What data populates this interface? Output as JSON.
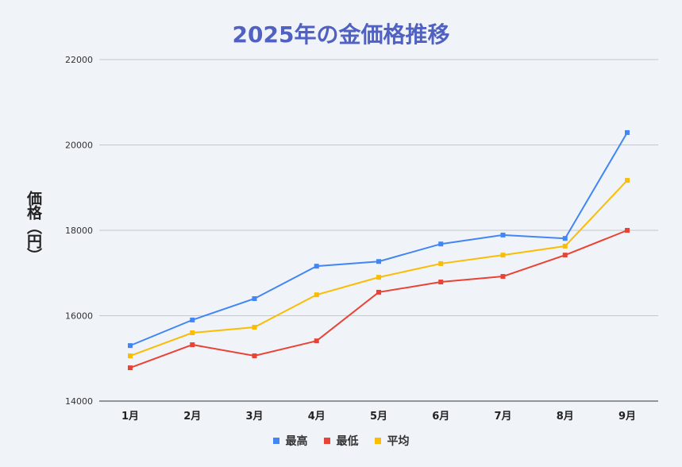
{
  "chart_data": {
    "type": "line",
    "title": "2025年の金価格推移",
    "xlabel": "",
    "ylabel": "価格（円）",
    "categories": [
      "1月",
      "2月",
      "3月",
      "4月",
      "5月",
      "6月",
      "7月",
      "8月",
      "9月"
    ],
    "ylim": [
      14000,
      22000
    ],
    "yticks": [
      "14000",
      "16000",
      "18000",
      "20000",
      "22000"
    ],
    "grid": true,
    "legend_position": "bottom",
    "series": [
      {
        "name": "最高",
        "color": "#4285f4",
        "values": [
          15300,
          15900,
          16400,
          17160,
          17270,
          17680,
          17890,
          17810,
          20290
        ]
      },
      {
        "name": "最低",
        "color": "#ea4335",
        "values": [
          14780,
          15320,
          15060,
          15410,
          16550,
          16790,
          16920,
          17420,
          18000
        ]
      },
      {
        "name": "平均",
        "color": "#fbbc04",
        "values": [
          15060,
          15600,
          15730,
          16490,
          16900,
          17220,
          17420,
          17630,
          19170
        ]
      }
    ]
  }
}
